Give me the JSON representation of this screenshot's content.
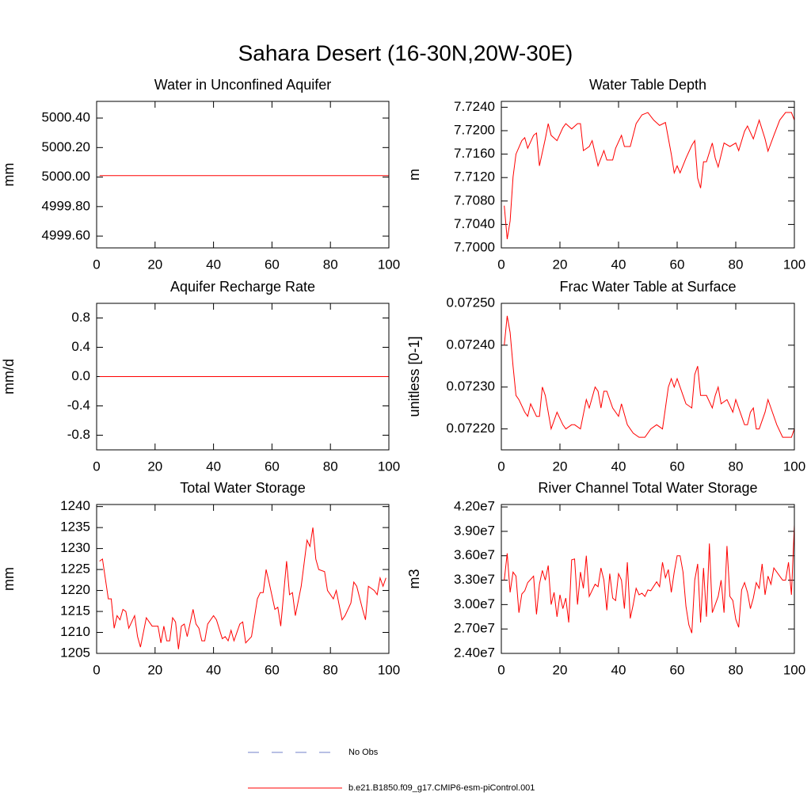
{
  "title": "Sahara Desert (16-30N,20W-30E)",
  "legend": [
    {
      "name": "No Obs",
      "color": "#7080c8",
      "dash": true
    },
    {
      "name": "b.e21.B1850.f09_g17.CMIP6-esm-piControl.001",
      "color": "#ff0000",
      "dash": false
    }
  ],
  "chart_data": [
    {
      "type": "line",
      "title": "Water in Unconfined Aquifer",
      "ylabel": "mm",
      "x": [
        1,
        100
      ],
      "series": [
        {
          "color": "#ff0000",
          "values": [
            5000.01,
            5000.01
          ]
        }
      ],
      "xlim": [
        0,
        100
      ],
      "xticks": [
        0,
        20,
        40,
        60,
        80,
        100
      ],
      "ylim": [
        4999.52,
        5000.513
      ],
      "yticks": [
        {
          "value": 4999.6,
          "label": "4999.60"
        },
        {
          "value": 4999.8,
          "label": "4999.80"
        },
        {
          "value": 5000,
          "label": "5000.00"
        },
        {
          "value": 5000.2,
          "label": "5000.20"
        },
        {
          "value": 5000.4,
          "label": "5000.40"
        }
      ]
    },
    {
      "type": "line",
      "title": "Water Table Depth",
      "ylabel": "m",
      "x": [
        1,
        2,
        3,
        4,
        5,
        7,
        8,
        9,
        11,
        12,
        13,
        15,
        16,
        17,
        19,
        21,
        22,
        24,
        26,
        27,
        28,
        30,
        31,
        33,
        35,
        36,
        38,
        39,
        41,
        42,
        44,
        46,
        48,
        50,
        52,
        54,
        56,
        58,
        59,
        60,
        61,
        63,
        65,
        66,
        67,
        68,
        69,
        70,
        72,
        73,
        74,
        76,
        78,
        80,
        81,
        83,
        84,
        86,
        88,
        90,
        91,
        93,
        95,
        97,
        99,
        100
      ],
      "series": [
        {
          "color": "#ff0000",
          "values": [
            7.7072,
            7.7015,
            7.7046,
            7.7121,
            7.716,
            7.7183,
            7.7188,
            7.717,
            7.7192,
            7.7196,
            7.714,
            7.7186,
            7.7212,
            7.7192,
            7.7183,
            7.7205,
            7.7212,
            7.7203,
            7.7212,
            7.7212,
            7.7166,
            7.7173,
            7.7183,
            7.714,
            7.7166,
            7.715,
            7.715,
            7.717,
            7.7192,
            7.7173,
            7.7173,
            7.7212,
            7.7227,
            7.7231,
            7.7218,
            7.7209,
            7.7214,
            7.716,
            7.7128,
            7.714,
            7.7128,
            7.7153,
            7.7175,
            7.7183,
            7.7119,
            7.7102,
            7.7147,
            7.7147,
            7.7179,
            7.7153,
            7.7138,
            7.7179,
            7.7173,
            7.7179,
            7.7166,
            7.7199,
            7.7208,
            7.7186,
            7.7218,
            7.7186,
            7.7165,
            7.7192,
            7.7218,
            7.7231,
            7.7231,
            7.7218
          ]
        }
      ],
      "xlim": [
        0,
        100
      ],
      "xticks": [
        0,
        20,
        40,
        60,
        80,
        100
      ],
      "ylim": [
        7.7,
        7.725
      ],
      "yticks": [
        {
          "value": 7.7,
          "label": "7.7000"
        },
        {
          "value": 7.704,
          "label": "7.7040"
        },
        {
          "value": 7.708,
          "label": "7.7080"
        },
        {
          "value": 7.712,
          "label": "7.7120"
        },
        {
          "value": 7.716,
          "label": "7.7160"
        },
        {
          "value": 7.72,
          "label": "7.7200"
        },
        {
          "value": 7.724,
          "label": "7.7240"
        }
      ]
    },
    {
      "type": "line",
      "title": "Aquifer Recharge Rate",
      "ylabel": "mm/d",
      "x": [
        1,
        100
      ],
      "series": [
        {
          "color": "#ff0000",
          "values": [
            0,
            0
          ]
        }
      ],
      "xlim": [
        0,
        100
      ],
      "xticks": [
        0,
        20,
        40,
        60,
        80,
        100
      ],
      "ylim": [
        -1,
        1
      ],
      "yticks": [
        -0.8,
        -0.4,
        {
          "value": 0,
          "label": "0.0"
        },
        0.4,
        0.8
      ]
    },
    {
      "type": "line",
      "title": "Frac Water Table at Surface",
      "ylabel": "unitless [0-1]",
      "x": [
        1,
        2,
        3,
        4,
        5,
        6,
        8,
        9,
        10,
        12,
        13,
        14,
        15,
        17,
        19,
        21,
        22,
        24,
        25,
        27,
        29,
        30,
        32,
        33,
        34,
        35,
        36,
        38,
        40,
        41,
        43,
        45,
        47,
        49,
        51,
        53,
        55,
        57,
        58,
        59,
        60,
        61,
        63,
        65,
        66,
        67,
        68,
        70,
        72,
        73,
        74,
        75,
        77,
        79,
        80,
        82,
        83,
        84,
        85,
        86,
        87,
        88,
        90,
        91,
        92,
        94,
        96,
        98,
        99,
        100
      ],
      "series": [
        {
          "color": "#ff0000",
          "values": [
            0.0724,
            0.07247,
            0.07243,
            0.07235,
            0.07228,
            0.07227,
            0.07224,
            0.07223,
            0.07226,
            0.07223,
            0.07223,
            0.0723,
            0.07228,
            0.0722,
            0.07224,
            0.07221,
            0.0722,
            0.07221,
            0.07221,
            0.0722,
            0.07227,
            0.07225,
            0.0723,
            0.07229,
            0.07225,
            0.07229,
            0.07229,
            0.07225,
            0.07223,
            0.07226,
            0.07221,
            0.07219,
            0.07218,
            0.07218,
            0.0722,
            0.07221,
            0.0722,
            0.0723,
            0.07232,
            0.0723,
            0.07232,
            0.0723,
            0.07226,
            0.07225,
            0.07233,
            0.07235,
            0.07228,
            0.07228,
            0.07225,
            0.07228,
            0.0723,
            0.07226,
            0.07227,
            0.07224,
            0.07227,
            0.07223,
            0.07221,
            0.07221,
            0.07224,
            0.07225,
            0.0722,
            0.0722,
            0.07224,
            0.07227,
            0.07225,
            0.07221,
            0.07218,
            0.07218,
            0.07218,
            0.0722
          ]
        }
      ],
      "xlim": [
        0,
        100
      ],
      "xticks": [
        0,
        20,
        40,
        60,
        80,
        100
      ],
      "ylim": [
        0.07215,
        0.0725
      ],
      "yticks": [
        {
          "value": 0.0722,
          "label": "0.07220"
        },
        {
          "value": 0.0723,
          "label": "0.07230"
        },
        {
          "value": 0.0724,
          "label": "0.07240"
        },
        {
          "value": 0.0725,
          "label": "0.07250"
        }
      ]
    },
    {
      "type": "line",
      "title": "Total Water Storage",
      "ylabel": "mm",
      "x": [
        1,
        2,
        4,
        5,
        6,
        7,
        8,
        9,
        10,
        11,
        13,
        14,
        15,
        17,
        19,
        21,
        22,
        23,
        24,
        25,
        26,
        27,
        28,
        29,
        30,
        31,
        33,
        34,
        35,
        36,
        37,
        38,
        40,
        41,
        43,
        44,
        45,
        46,
        47,
        49,
        50,
        51,
        53,
        55,
        56,
        57,
        58,
        59,
        61,
        62,
        63,
        65,
        66,
        67,
        68,
        70,
        72,
        73,
        74,
        75,
        76,
        78,
        79,
        81,
        82,
        84,
        85,
        87,
        88,
        89,
        91,
        92,
        93,
        95,
        96,
        97,
        98,
        99
      ],
      "series": [
        {
          "color": "#ff0000",
          "values": [
            1227,
            1227.5,
            1218,
            1218,
            1211,
            1214,
            1213,
            1215.5,
            1215,
            1211,
            1214,
            1209,
            1206.5,
            1213.5,
            1211.5,
            1211.5,
            1207.5,
            1211.5,
            1208,
            1208,
            1213.5,
            1212.5,
            1206,
            1211.5,
            1212,
            1209,
            1215.5,
            1212,
            1211,
            1208,
            1208,
            1212,
            1214,
            1213,
            1208.5,
            1209,
            1208,
            1210.5,
            1208,
            1212,
            1212.5,
            1207.5,
            1209,
            1218,
            1219.5,
            1219.5,
            1225,
            1222,
            1215.5,
            1216,
            1211.5,
            1227,
            1219,
            1219.5,
            1214,
            1221,
            1232,
            1230.5,
            1235,
            1227.5,
            1225,
            1224.5,
            1220,
            1218,
            1220,
            1213,
            1214,
            1217,
            1222,
            1221,
            1215.5,
            1213,
            1221,
            1220,
            1219,
            1223,
            1221,
            1223
          ]
        }
      ],
      "xlim": [
        0,
        100
      ],
      "xticks": [
        0,
        20,
        40,
        60,
        80,
        100
      ],
      "ylim": [
        1205,
        1240.5
      ],
      "yticks": [
        1205,
        1210,
        1215,
        1220,
        1225,
        1230,
        1235,
        1240
      ]
    },
    {
      "type": "line",
      "title": "River Channel Total Water Storage",
      "ylabel": "m3",
      "x": [
        1,
        2,
        3,
        4,
        5,
        6,
        7,
        8,
        9,
        11,
        12,
        13,
        14,
        15,
        16,
        17,
        18,
        19,
        20,
        21,
        22,
        23,
        24,
        25,
        26,
        27,
        28,
        29,
        30,
        32,
        33,
        34,
        35,
        36,
        37,
        38,
        39,
        40,
        41,
        42,
        43,
        44,
        45,
        46,
        47,
        48,
        49,
        50,
        51,
        53,
        54,
        55,
        56,
        57,
        58,
        59,
        60,
        61,
        62,
        63,
        64,
        65,
        66,
        67,
        68,
        69,
        70,
        71,
        72,
        74,
        75,
        76,
        77,
        78,
        79,
        80,
        81,
        82,
        83,
        84,
        85,
        86,
        87,
        88,
        89,
        90,
        91,
        92,
        93,
        95,
        96,
        97,
        98,
        99,
        100
      ],
      "series": [
        {
          "color": "#ff0000",
          "values": [
            33000000,
            36300000,
            31500000,
            34000000,
            33500000,
            29000000,
            31300000,
            31700000,
            32700000,
            33500000,
            28800000,
            32500000,
            34200000,
            33000000,
            34800000,
            30000000,
            31500000,
            28500000,
            31200000,
            29500000,
            30800000,
            27800000,
            35500000,
            35600000,
            30000000,
            34000000,
            32000000,
            36000000,
            31000000,
            32500000,
            32200000,
            34500000,
            33000000,
            29300000,
            33800000,
            30800000,
            30500000,
            33800000,
            33000000,
            29500000,
            35200000,
            28300000,
            30000000,
            32000000,
            31200000,
            31400000,
            31000000,
            31800000,
            31700000,
            32800000,
            32200000,
            35200000,
            33300000,
            34300000,
            31500000,
            34000000,
            36000000,
            36000000,
            34000000,
            29800000,
            27500000,
            26500000,
            33000000,
            35000000,
            27800000,
            34500000,
            28500000,
            37500000,
            29000000,
            31000000,
            33000000,
            29000000,
            37200000,
            31000000,
            30500000,
            28200000,
            27200000,
            31800000,
            32700000,
            31500000,
            29500000,
            30800000,
            32700000,
            32000000,
            35000000,
            31200000,
            33500000,
            32500000,
            34500000,
            33500000,
            33000000,
            33000000,
            35200000,
            31200000,
            39800000
          ]
        }
      ],
      "xlim": [
        0,
        100
      ],
      "xticks": [
        0,
        20,
        40,
        60,
        80,
        100
      ],
      "ylim": [
        24000000,
        42300000
      ],
      "yticks": [
        {
          "value": 24000000,
          "label": "2.40e7"
        },
        {
          "value": 27000000,
          "label": "2.70e7"
        },
        {
          "value": 30000000,
          "label": "3.00e7"
        },
        {
          "value": 33000000,
          "label": "3.30e7"
        },
        {
          "value": 36000000,
          "label": "3.60e7"
        },
        {
          "value": 39000000,
          "label": "3.90e7"
        },
        {
          "value": 42000000,
          "label": "4.20e7"
        }
      ]
    }
  ]
}
